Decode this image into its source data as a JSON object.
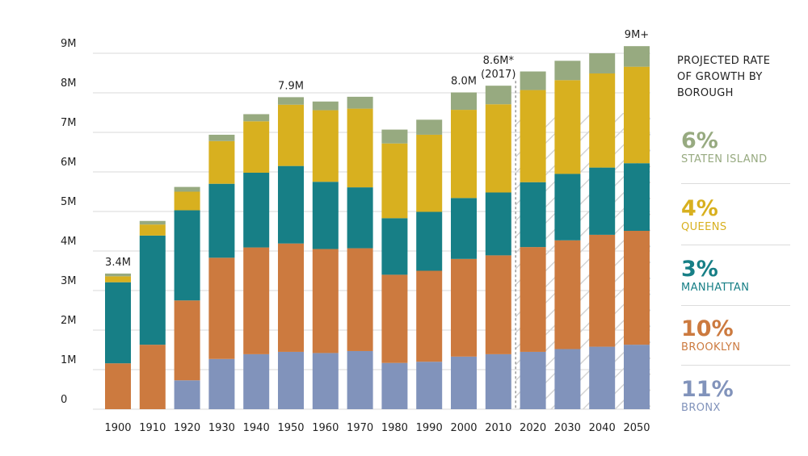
{
  "colors": {
    "bronx": "#8193bb",
    "brooklyn": "#cc7a3f",
    "manhattan": "#177f86",
    "queens": "#d8b01f",
    "staten_island": "#97aa80",
    "grid": "#d9d9d9",
    "hatch": "#d4d4d4",
    "divider": "#9a9a9a"
  },
  "chart_data": {
    "type": "stacked-bar",
    "title": "",
    "xlabel": "",
    "ylabel": "",
    "ylim": [
      0,
      9000000
    ],
    "y_ticks": [
      {
        "value": 0,
        "label": "0"
      },
      {
        "value": 1000000,
        "label": "1M"
      },
      {
        "value": 2000000,
        "label": "2M"
      },
      {
        "value": 3000000,
        "label": "3M"
      },
      {
        "value": 4000000,
        "label": "4M"
      },
      {
        "value": 5000000,
        "label": "5M"
      },
      {
        "value": 6000000,
        "label": "6M"
      },
      {
        "value": 7000000,
        "label": "7M"
      },
      {
        "value": 8000000,
        "label": "8M"
      },
      {
        "value": 9000000,
        "label": "9M"
      }
    ],
    "categories": [
      "1900",
      "1910",
      "1920",
      "1930",
      "1940",
      "1950",
      "1960",
      "1970",
      "1980",
      "1990",
      "2000",
      "2010",
      "2020",
      "2030",
      "2040",
      "2050"
    ],
    "projected_start": "2020",
    "series": [
      {
        "name": "Bronx",
        "color_key": "bronx",
        "values": [
          0,
          0,
          730000,
          1270000,
          1390000,
          1450000,
          1420000,
          1470000,
          1170000,
          1200000,
          1330000,
          1390000,
          1450000,
          1520000,
          1580000,
          1630000
        ]
      },
      {
        "name": "Brooklyn",
        "color_key": "brooklyn",
        "values": [
          1160000,
          1630000,
          2020000,
          2560000,
          2700000,
          2740000,
          2630000,
          2600000,
          2230000,
          2300000,
          2470000,
          2500000,
          2650000,
          2750000,
          2830000,
          2880000
        ]
      },
      {
        "name": "Manhattan",
        "color_key": "manhattan",
        "values": [
          2050000,
          2760000,
          2280000,
          1870000,
          1890000,
          1960000,
          1700000,
          1540000,
          1430000,
          1490000,
          1540000,
          1590000,
          1640000,
          1680000,
          1700000,
          1710000
        ]
      },
      {
        "name": "Queens",
        "color_key": "queens",
        "values": [
          150000,
          280000,
          470000,
          1080000,
          1300000,
          1550000,
          1810000,
          1990000,
          1890000,
          1950000,
          2230000,
          2230000,
          2330000,
          2370000,
          2380000,
          2440000
        ]
      },
      {
        "name": "Staten Island",
        "color_key": "staten_island",
        "values": [
          70000,
          90000,
          120000,
          160000,
          180000,
          190000,
          220000,
          300000,
          350000,
          380000,
          440000,
          470000,
          470000,
          490000,
          510000,
          520000
        ]
      }
    ],
    "annotations": [
      {
        "category": "1900",
        "lines": [
          "3.4M"
        ]
      },
      {
        "category": "1950",
        "lines": [
          "7.9M"
        ]
      },
      {
        "category": "2000",
        "lines": [
          "8.0M"
        ]
      },
      {
        "category": "2010",
        "lines": [
          "8.6M*",
          "(2017)"
        ]
      },
      {
        "category": "2050",
        "lines": [
          "9M+"
        ]
      }
    ]
  },
  "legend": {
    "title_lines": [
      "PROJECTED RATE",
      "OF GROWTH BY",
      "BOROUGH"
    ],
    "items": [
      {
        "pct": "6%",
        "name": "STATEN ISLAND",
        "color_key": "staten_island"
      },
      {
        "pct": "4%",
        "name": "QUEENS",
        "color_key": "queens"
      },
      {
        "pct": "3%",
        "name": "MANHATTAN",
        "color_key": "manhattan"
      },
      {
        "pct": "10%",
        "name": "BROOKLYN",
        "color_key": "brooklyn"
      },
      {
        "pct": "11%",
        "name": "BRONX",
        "color_key": "bronx"
      }
    ]
  }
}
